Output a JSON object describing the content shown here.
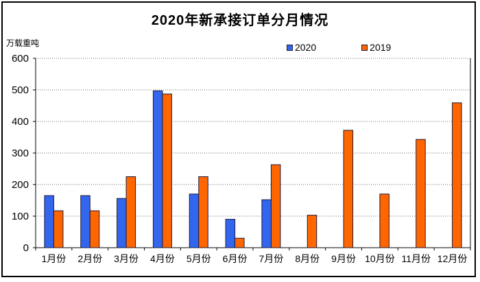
{
  "chart_data": {
    "type": "bar",
    "title": "2020年新承接订单分月情况",
    "unit_label": "万载重吨",
    "xlabel": "",
    "ylabel": "万载重吨",
    "categories": [
      "1月份",
      "2月份",
      "3月份",
      "4月份",
      "5月份",
      "6月份",
      "7月份",
      "8月份",
      "9月份",
      "10月份",
      "11月份",
      "12月份"
    ],
    "series": [
      {
        "name": "2020",
        "color": "#3366EE",
        "values": [
          165,
          165,
          156,
          497,
          170,
          90,
          152,
          null,
          null,
          null,
          null,
          null
        ]
      },
      {
        "name": "2019",
        "color": "#FF6600",
        "values": [
          117,
          117,
          225,
          487,
          225,
          30,
          263,
          103,
          372,
          170,
          343,
          459
        ]
      }
    ],
    "ylim": [
      0,
      600
    ],
    "yticks": [
      0,
      100,
      200,
      300,
      400,
      500,
      600
    ],
    "grid": "horizontal-dotted",
    "legend_position": "top-center",
    "axis_color": "#000000",
    "gridline_color": "#6b6b6b",
    "bar_border_color": "#1a1a3c"
  }
}
